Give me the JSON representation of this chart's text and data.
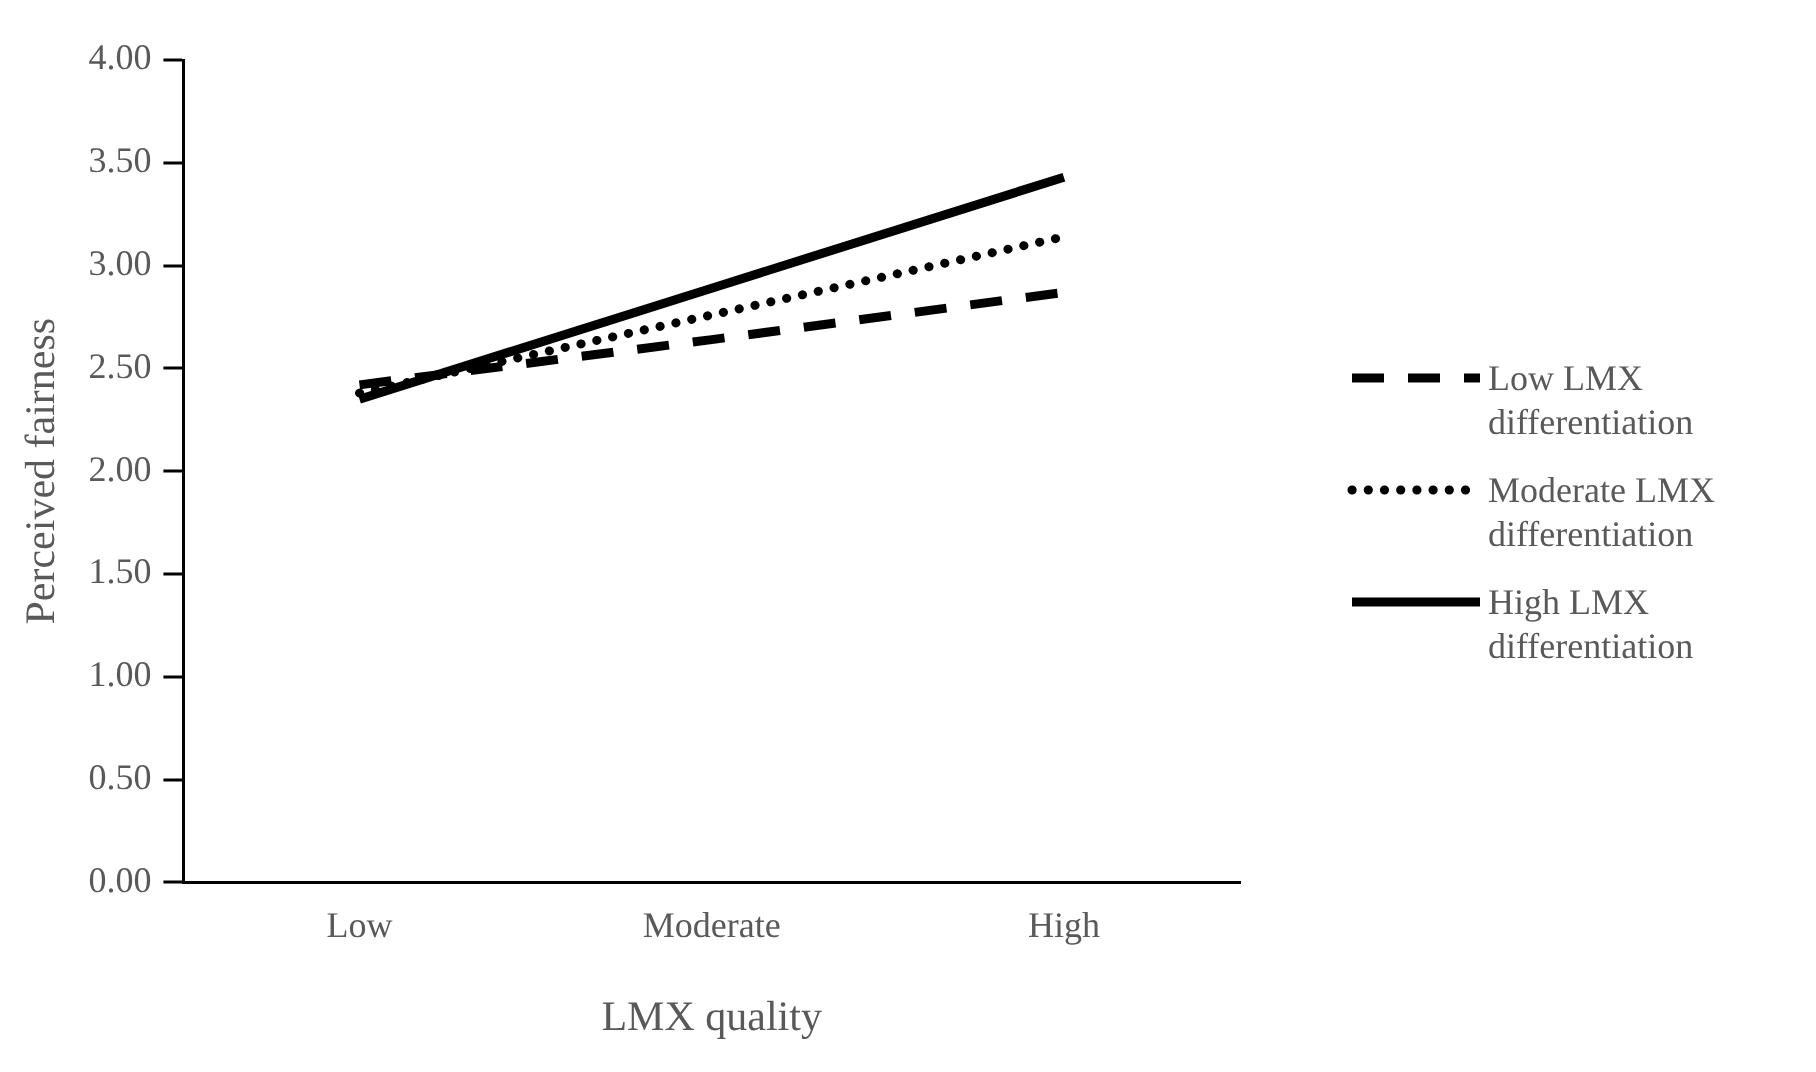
{
  "chart_data": {
    "type": "line",
    "xlabel": "LMX quality",
    "ylabel": "Perceived fairness",
    "categories": [
      "Low",
      "Moderate",
      "High"
    ],
    "series": [
      {
        "name": "Low LMX differentiation",
        "color": "#000000",
        "line_style": "dashed",
        "values": [
          2.42,
          2.64,
          2.87
        ]
      },
      {
        "name": "Moderate LMX differentiation",
        "color": "#000000",
        "line_style": "dotted",
        "values": [
          2.38,
          2.76,
          3.14
        ]
      },
      {
        "name": "High LMX differentiation",
        "color": "#000000",
        "line_style": "solid",
        "values": [
          2.35,
          2.89,
          3.43
        ]
      }
    ],
    "ylim": [
      0,
      4
    ],
    "yticks": [
      {
        "value": 0,
        "label": "0.00"
      },
      {
        "value": 0.5,
        "label": "0.50"
      },
      {
        "value": 1,
        "label": "1.00"
      },
      {
        "value": 1.5,
        "label": "1.50"
      },
      {
        "value": 2,
        "label": "2.00"
      },
      {
        "value": 2.5,
        "label": "2.50"
      },
      {
        "value": 3,
        "label": "3.00"
      },
      {
        "value": 3.5,
        "label": "3.50"
      },
      {
        "value": 4,
        "label": "4.00"
      }
    ],
    "grid": false,
    "legend": "right",
    "marker": "none"
  }
}
